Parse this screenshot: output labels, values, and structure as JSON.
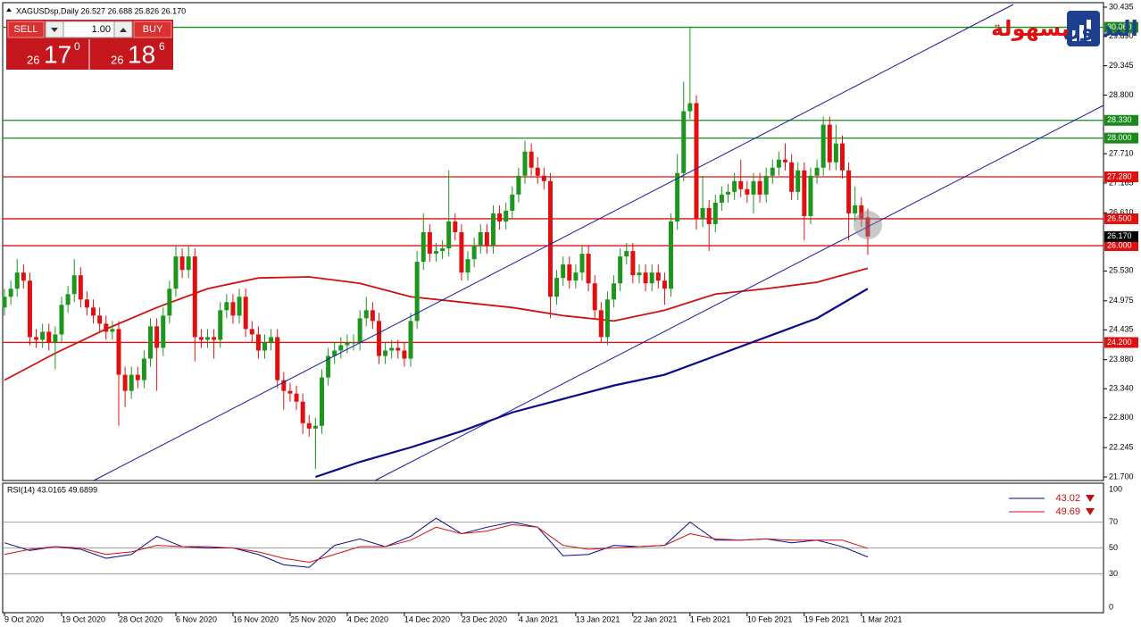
{
  "chart_data": [
    {
      "type": "candlestick",
      "title": "XAGUSDsp,Daily  26.527 26.688 25.826 26.170",
      "xlim": [
        0,
        173
      ],
      "ylim": [
        21.7,
        30.435
      ],
      "yticks": [
        30.435,
        {
          "value": 29.89,
          "label": "29.890"
        },
        29.345,
        {
          "value": 28.8,
          "label": "28.800"
        },
        {
          "value": 27.71,
          "label": "27.710"
        },
        27.165,
        {
          "value": 26.61,
          "label": "26.610"
        },
        {
          "value": 25.53,
          "label": "25.530"
        },
        24.975,
        24.435,
        {
          "value": 23.88,
          "label": "23.880"
        },
        {
          "value": 23.34,
          "label": "23.340"
        },
        {
          "value": 22.8,
          "label": "22.800"
        },
        22.245,
        {
          "value": 21.7,
          "label": "21.700"
        }
      ],
      "xticks": [
        {
          "value": 0,
          "label": "9 Oct 2020"
        },
        {
          "value": 9,
          "label": "19 Oct 2020"
        },
        {
          "value": 18,
          "label": "28 Oct 2020"
        },
        {
          "value": 27,
          "label": "6 Nov 2020"
        },
        {
          "value": 36,
          "label": "16 Nov 2020"
        },
        {
          "value": 45,
          "label": "25 Nov 2020"
        },
        {
          "value": 54,
          "label": "4 Dec 2020"
        },
        {
          "value": 63,
          "label": "14 Dec 2020"
        },
        {
          "value": 72,
          "label": "23 Dec 2020"
        },
        {
          "value": 81,
          "label": "4 Jan 2021"
        },
        {
          "value": 90,
          "label": "13 Jan 2021"
        },
        {
          "value": 99,
          "label": "22 Jan 2021"
        },
        {
          "value": 108,
          "label": "1 Feb 2021"
        },
        {
          "value": 117,
          "label": "10 Feb 2021"
        },
        {
          "value": 126,
          "label": "19 Feb 2021"
        },
        {
          "value": 135,
          "label": "1 Mar 2021"
        }
      ],
      "up_color": "#1e961e",
      "down_color": "#e01010",
      "open": [
        24.85,
        25.05,
        25.2,
        25.5,
        25.35,
        24.3,
        24.25,
        24.4,
        24.2,
        24.35,
        24.9,
        25.1,
        25.45,
        25.0,
        24.85,
        24.7,
        24.55,
        24.4,
        24.45,
        23.6,
        23.3,
        23.6,
        23.5,
        23.9,
        24.5,
        24.1,
        24.7,
        25.2,
        25.8,
        25.55,
        25.8,
        24.3,
        24.25,
        24.3,
        24.25,
        24.8,
        24.95,
        24.7,
        25.05,
        24.45,
        24.35,
        24.05,
        24.2,
        24.3,
        23.5,
        23.3,
        23.25,
        23.1,
        22.7,
        22.6,
        22.65,
        23.55,
        23.95,
        24.05,
        24.15,
        24.2,
        24.2,
        24.65,
        24.8,
        24.6,
        23.95,
        24.05,
        24.1,
        24.05,
        23.9,
        24.6,
        25.7,
        26.25,
        25.85,
        25.9,
        25.95,
        26.45,
        26.25,
        25.5,
        25.75,
        26.0,
        26.25,
        26.0,
        26.6,
        26.45,
        26.65,
        26.95,
        27.3,
        27.75,
        27.45,
        27.3,
        27.2,
        25.05,
        25.4,
        25.65,
        25.35,
        25.5,
        25.85,
        25.3,
        24.8,
        24.3,
        25.0,
        25.3,
        25.8,
        25.9,
        25.45,
        25.5,
        25.3,
        25.5,
        25.35,
        25.2,
        26.45,
        27.35,
        28.5,
        28.65,
        26.5,
        26.7,
        26.4,
        26.8,
        26.95,
        27.0,
        27.2,
        27.05,
        26.95,
        27.2,
        26.95,
        27.3,
        27.45,
        27.6,
        27.55,
        27.0,
        27.4,
        26.55,
        27.3,
        27.45,
        28.25,
        27.55,
        27.9,
        27.4,
        26.6,
        26.75,
        26.527
      ],
      "high": [
        25.2,
        25.35,
        25.75,
        25.65,
        25.5,
        24.45,
        24.55,
        24.55,
        24.5,
        25.05,
        25.25,
        25.75,
        25.6,
        25.15,
        25.0,
        24.85,
        24.7,
        24.6,
        24.6,
        23.75,
        23.75,
        23.75,
        24.05,
        24.65,
        24.65,
        24.85,
        25.35,
        26.0,
        25.95,
        26.0,
        25.95,
        24.45,
        24.45,
        24.45,
        24.95,
        25.1,
        25.1,
        25.2,
        25.2,
        24.6,
        24.5,
        24.35,
        24.45,
        24.45,
        23.65,
        23.45,
        23.4,
        23.25,
        22.85,
        22.8,
        23.7,
        24.1,
        24.2,
        24.3,
        24.35,
        24.35,
        24.8,
        25.05,
        24.95,
        24.75,
        24.2,
        24.25,
        24.25,
        24.2,
        24.75,
        25.9,
        26.6,
        26.4,
        26.05,
        26.1,
        27.4,
        26.6,
        26.4,
        25.9,
        26.15,
        26.4,
        26.4,
        26.75,
        26.75,
        26.8,
        27.1,
        27.45,
        27.95,
        27.9,
        27.65,
        27.45,
        27.35,
        25.55,
        25.8,
        25.8,
        25.65,
        26.0,
        26.0,
        25.45,
        24.95,
        25.15,
        25.45,
        25.95,
        26.05,
        26.05,
        25.65,
        25.65,
        25.65,
        25.65,
        25.5,
        26.6,
        27.7,
        29.05,
        30.05,
        28.8,
        27.3,
        26.85,
        26.95,
        27.1,
        27.15,
        27.35,
        27.6,
        27.2,
        27.35,
        27.35,
        27.45,
        27.6,
        27.75,
        27.9,
        27.7,
        27.55,
        27.55,
        27.45,
        27.6,
        28.4,
        28.4,
        28.25,
        28.05,
        27.55,
        27.1,
        26.9,
        26.688
      ],
      "low": [
        24.7,
        24.9,
        25.05,
        25.2,
        24.15,
        24.1,
        24.1,
        24.05,
        23.7,
        24.2,
        24.75,
        24.95,
        24.85,
        24.7,
        24.55,
        24.4,
        24.25,
        24.25,
        22.65,
        23.0,
        23.15,
        23.35,
        23.35,
        23.75,
        23.3,
        23.95,
        24.55,
        25.05,
        25.4,
        25.4,
        23.85,
        24.1,
        24.1,
        23.9,
        24.1,
        24.65,
        24.55,
        24.55,
        24.3,
        24.2,
        23.9,
        23.9,
        24.05,
        23.35,
        22.95,
        23.1,
        22.95,
        22.5,
        22.45,
        21.85,
        22.5,
        23.4,
        23.8,
        23.9,
        24.0,
        24.05,
        24.05,
        24.5,
        24.45,
        23.8,
        23.8,
        23.9,
        23.9,
        23.75,
        23.75,
        24.45,
        25.55,
        25.7,
        25.7,
        25.75,
        25.8,
        26.1,
        25.35,
        25.35,
        25.6,
        25.85,
        25.85,
        25.85,
        26.3,
        26.3,
        26.5,
        26.8,
        27.15,
        27.3,
        27.15,
        27.05,
        24.65,
        24.9,
        25.25,
        25.2,
        25.2,
        25.35,
        25.15,
        24.65,
        24.2,
        24.15,
        24.85,
        25.15,
        25.65,
        25.3,
        25.3,
        25.15,
        25.15,
        25.2,
        24.9,
        25.05,
        26.3,
        27.2,
        28.35,
        26.3,
        26.35,
        25.9,
        26.25,
        26.65,
        26.8,
        26.85,
        26.9,
        26.8,
        26.6,
        26.8,
        26.8,
        27.15,
        27.3,
        27.4,
        26.85,
        26.85,
        26.1,
        26.4,
        27.15,
        27.3,
        27.4,
        27.4,
        27.25,
        26.1,
        26.45,
        26.35,
        25.826
      ],
      "close": [
        25.05,
        25.2,
        25.5,
        25.35,
        24.3,
        24.25,
        24.4,
        24.2,
        24.35,
        24.9,
        25.1,
        25.45,
        25.0,
        24.85,
        24.7,
        24.55,
        24.4,
        24.45,
        23.6,
        23.3,
        23.6,
        23.5,
        23.9,
        24.5,
        24.1,
        24.7,
        25.2,
        25.8,
        25.55,
        25.8,
        24.3,
        24.25,
        24.3,
        24.25,
        24.8,
        24.95,
        24.7,
        25.05,
        24.45,
        24.35,
        24.05,
        24.2,
        24.3,
        23.5,
        23.3,
        23.25,
        23.1,
        22.7,
        22.6,
        22.65,
        23.55,
        23.95,
        24.05,
        24.15,
        24.2,
        24.2,
        24.65,
        24.8,
        24.6,
        23.95,
        24.05,
        24.1,
        24.05,
        23.9,
        24.6,
        25.7,
        26.25,
        25.85,
        25.9,
        25.95,
        26.45,
        26.25,
        25.5,
        25.75,
        26.0,
        26.25,
        26.0,
        26.6,
        26.45,
        26.65,
        26.95,
        27.3,
        27.75,
        27.45,
        27.3,
        27.2,
        25.05,
        25.4,
        25.65,
        25.35,
        25.5,
        25.85,
        25.3,
        24.8,
        24.3,
        25.0,
        25.3,
        25.8,
        25.9,
        25.45,
        25.5,
        25.3,
        25.5,
        25.35,
        25.2,
        26.45,
        27.35,
        28.5,
        28.65,
        26.5,
        26.7,
        26.4,
        26.8,
        26.95,
        27.0,
        27.2,
        27.05,
        26.95,
        27.2,
        26.95,
        27.3,
        27.45,
        27.6,
        27.55,
        27.0,
        27.4,
        26.55,
        27.3,
        27.45,
        28.25,
        27.55,
        27.9,
        27.4,
        26.6,
        26.75,
        26.5,
        26.17
      ],
      "moving_averages": [
        {
          "color": "#d01010",
          "x": [
            0,
            8,
            16,
            24,
            32,
            40,
            48,
            56,
            64,
            72,
            80,
            88,
            96,
            104,
            112,
            120,
            128,
            136
          ],
          "values": [
            23.5,
            24.0,
            24.45,
            24.85,
            25.2,
            25.4,
            25.42,
            25.3,
            25.05,
            24.95,
            24.85,
            24.7,
            24.6,
            24.8,
            25.1,
            25.2,
            25.32,
            25.58
          ]
        },
        {
          "color": "#0a0a8c",
          "x": [
            49,
            56,
            64,
            72,
            80,
            88,
            96,
            104,
            112,
            120,
            128,
            136
          ],
          "values": [
            21.7,
            21.98,
            22.25,
            22.55,
            22.9,
            23.15,
            23.4,
            23.6,
            23.95,
            24.3,
            24.65,
            25.2
          ]
        }
      ],
      "levels": [
        {
          "value": 30.06,
          "label": "30.060",
          "color": "#1a8a1a"
        },
        {
          "value": 28.33,
          "label": "28.330",
          "color": "#1a8a1a"
        },
        {
          "value": 28.0,
          "label": "28.000",
          "color": "#1a8a1a"
        },
        {
          "value": 27.28,
          "label": "27.280",
          "color": "#e01010"
        },
        {
          "value": 26.5,
          "label": "26.500",
          "color": "#e01010"
        },
        {
          "value": 26.0,
          "label": "26.000",
          "color": "#e01010"
        },
        {
          "value": 24.2,
          "label": "24.200",
          "color": "#e01010"
        }
      ],
      "last_price": {
        "value": 26.17,
        "label": "26.170"
      },
      "trade_panel": {
        "sell": "SELL",
        "buy": "BUY",
        "lots": "1.00",
        "bid_big": "26",
        "bid_main": "17",
        "bid_sup": "0",
        "ask_big": "26",
        "ask_main": "18",
        "ask_sup": "6"
      },
      "logo": {
        "word_1": "التداول",
        "word_2": "بسهولة"
      }
    },
    {
      "type": "line",
      "title": "RSI(14) 43.0165 49.6899",
      "xlim": [
        0,
        173
      ],
      "ylim": [
        0,
        100
      ],
      "yticks": [
        100,
        70,
        50,
        30,
        0
      ],
      "series": [
        {
          "color": "#0a0a8c",
          "last_label": "43.02",
          "x": [
            0,
            4,
            8,
            12,
            16,
            20,
            24,
            28,
            32,
            36,
            40,
            44,
            48,
            52,
            56,
            60,
            64,
            68,
            72,
            76,
            80,
            84,
            88,
            92,
            96,
            100,
            104,
            108,
            112,
            116,
            120,
            124,
            128,
            132,
            136
          ],
          "values": [
            54,
            48,
            51,
            49,
            42,
            45,
            59,
            51,
            50,
            50,
            45,
            37,
            35,
            52,
            57,
            51,
            59,
            73,
            61,
            66,
            70,
            66,
            44,
            45,
            52,
            51,
            52,
            70,
            56,
            56,
            57,
            54,
            56,
            51,
            43.0165
          ]
        },
        {
          "color": "#d01010",
          "last_label": "49.69",
          "x": [
            0,
            4,
            8,
            12,
            16,
            20,
            24,
            28,
            32,
            36,
            40,
            44,
            48,
            52,
            56,
            60,
            64,
            68,
            72,
            76,
            80,
            84,
            88,
            92,
            96,
            100,
            104,
            108,
            112,
            116,
            120,
            124,
            128,
            132,
            136
          ],
          "values": [
            45,
            49,
            51,
            50,
            45,
            47,
            52,
            51,
            51,
            50,
            47,
            42,
            39,
            45,
            51,
            51,
            56,
            66,
            61,
            63,
            68,
            66,
            52,
            49,
            50,
            51,
            52,
            61,
            57,
            56,
            57,
            56,
            56,
            56,
            49.6899
          ]
        }
      ]
    }
  ]
}
